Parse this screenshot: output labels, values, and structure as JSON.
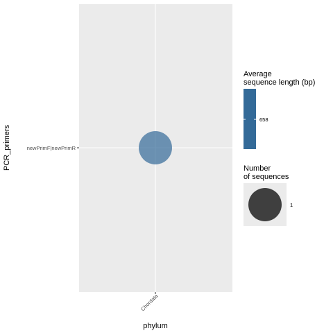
{
  "chart_data": {
    "type": "scatter",
    "x_categories": [
      "Chordata"
    ],
    "y_categories": [
      "newPrimF|newPrimR"
    ],
    "points": [
      {
        "x": "Chordata",
        "y": "newPrimF|newPrimR",
        "avg_length": 658,
        "count": 1
      }
    ],
    "xlabel": "phylum",
    "ylabel": "PCR_primers",
    "legend": {
      "placement": "right",
      "color": {
        "title_lines": [
          "Average",
          "sequence length (bp)"
        ],
        "tick_label": "658",
        "color": "#336a98"
      },
      "size": {
        "title_lines": [
          "Number",
          "of sequences"
        ],
        "tick_label": "1",
        "color": "#3f3f3f"
      }
    },
    "colors": {
      "panel_background": "#ebebeb",
      "grid": "#ffffff",
      "point_fill": "#336a98",
      "point_alpha": 0.7
    }
  }
}
